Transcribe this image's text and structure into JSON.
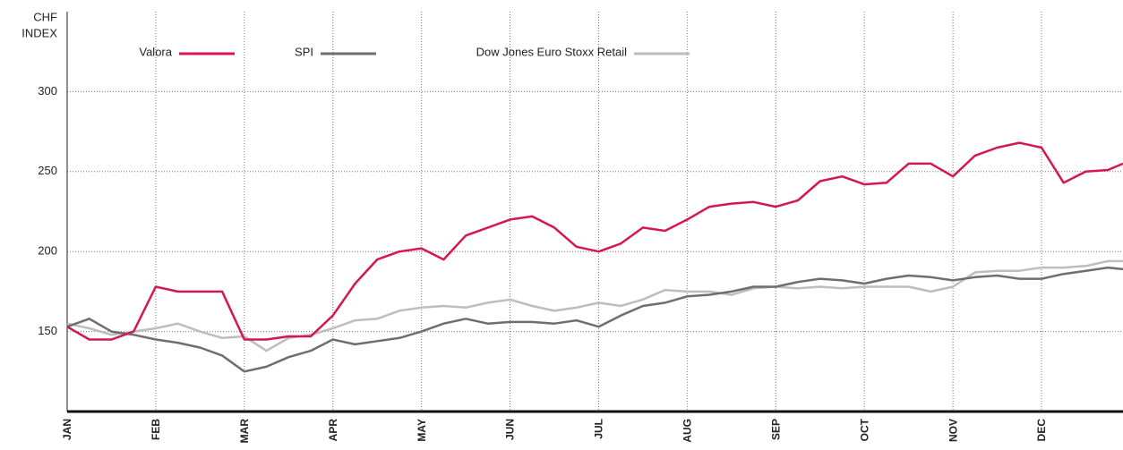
{
  "chart_data": {
    "type": "line",
    "ylabel": [
      "CHF",
      "INDEX"
    ],
    "x": [
      0,
      0.25,
      0.5,
      0.75,
      1,
      1.25,
      1.5,
      1.75,
      2,
      2.25,
      2.5,
      2.75,
      3,
      3.25,
      3.5,
      3.75,
      4,
      4.25,
      4.5,
      4.75,
      5,
      5.25,
      5.5,
      5.75,
      6,
      6.25,
      6.5,
      6.75,
      7,
      7.25,
      7.5,
      7.75,
      8,
      8.25,
      8.5,
      8.75,
      9,
      9.25,
      9.5,
      9.75,
      10,
      10.25,
      10.5,
      10.75,
      11,
      11.25,
      11.5,
      11.75,
      11.92
    ],
    "series": [
      {
        "name": "Valora",
        "color": "#d4184f",
        "values": [
          153,
          145,
          145,
          150,
          178,
          175,
          175,
          175,
          145,
          145,
          147,
          147,
          160,
          180,
          195,
          200,
          202,
          195,
          210,
          215,
          220,
          222,
          215,
          203,
          200,
          205,
          215,
          213,
          220,
          228,
          230,
          231,
          228,
          232,
          244,
          247,
          242,
          243,
          255,
          255,
          247,
          260,
          265,
          268,
          265,
          243,
          250,
          251,
          255
        ]
      },
      {
        "name": "SPI",
        "color": "#6e6e6e",
        "values": [
          153,
          158,
          150,
          148,
          145,
          143,
          140,
          135,
          125,
          128,
          134,
          138,
          145,
          142,
          144,
          146,
          150,
          155,
          158,
          155,
          156,
          156,
          155,
          157,
          153,
          160,
          166,
          168,
          172,
          173,
          175,
          178,
          178,
          181,
          183,
          182,
          180,
          183,
          185,
          184,
          182,
          184,
          185,
          183,
          183,
          186,
          188,
          190,
          189
        ]
      },
      {
        "name": "Dow Jones Euro Stoxx Retail",
        "color": "#bdbdbd",
        "values": [
          155,
          152,
          148,
          150,
          152,
          155,
          150,
          146,
          147,
          138,
          146,
          148,
          152,
          157,
          158,
          163,
          165,
          166,
          165,
          168,
          170,
          166,
          163,
          165,
          168,
          166,
          170,
          176,
          175,
          175,
          173,
          177,
          178,
          177,
          178,
          177,
          178,
          178,
          178,
          175,
          178,
          187,
          188,
          188,
          190,
          190,
          191,
          194,
          194
        ]
      }
    ],
    "xlim": [
      0,
      11.92
    ],
    "xticks": [
      {
        "value": 0,
        "label": "JAN"
      },
      {
        "value": 1,
        "label": "FEB"
      },
      {
        "value": 2,
        "label": "MAR"
      },
      {
        "value": 3,
        "label": "APR"
      },
      {
        "value": 4,
        "label": "MAY"
      },
      {
        "value": 5,
        "label": "JUN"
      },
      {
        "value": 6,
        "label": "JUL"
      },
      {
        "value": 7,
        "label": "AUG"
      },
      {
        "value": 8,
        "label": "SEP"
      },
      {
        "value": 9,
        "label": "OCT"
      },
      {
        "value": 10,
        "label": "NOV"
      },
      {
        "value": 11,
        "label": "DEC"
      }
    ],
    "ylim": [
      100,
      350
    ],
    "yticks": [
      150,
      200,
      250,
      300
    ],
    "grid": true,
    "legend": "top"
  }
}
